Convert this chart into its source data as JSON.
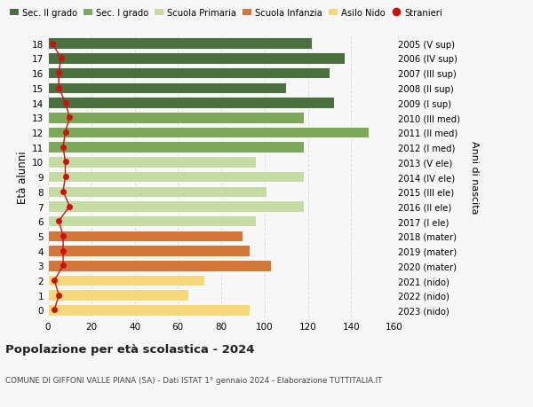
{
  "ages": [
    18,
    17,
    16,
    15,
    14,
    13,
    12,
    11,
    10,
    9,
    8,
    7,
    6,
    5,
    4,
    3,
    2,
    1,
    0
  ],
  "values": [
    122,
    137,
    130,
    110,
    132,
    118,
    148,
    118,
    96,
    118,
    101,
    118,
    96,
    90,
    93,
    103,
    72,
    65,
    93
  ],
  "right_labels": [
    "2005 (V sup)",
    "2006 (IV sup)",
    "2007 (III sup)",
    "2008 (II sup)",
    "2009 (I sup)",
    "2010 (III med)",
    "2011 (II med)",
    "2012 (I med)",
    "2013 (V ele)",
    "2014 (IV ele)",
    "2015 (III ele)",
    "2016 (II ele)",
    "2017 (I ele)",
    "2018 (mater)",
    "2019 (mater)",
    "2020 (mater)",
    "2021 (nido)",
    "2022 (nido)",
    "2023 (nido)"
  ],
  "bar_colors": [
    "#4a7040",
    "#4a7040",
    "#4a7040",
    "#4a7040",
    "#4a7040",
    "#7da85b",
    "#7da85b",
    "#7da85b",
    "#c5dba4",
    "#c5dba4",
    "#c5dba4",
    "#c5dba4",
    "#c5dba4",
    "#d2763a",
    "#d2763a",
    "#d2763a",
    "#f5d87a",
    "#f5d87a",
    "#f5d87a"
  ],
  "stranieri_values": [
    2,
    6,
    5,
    5,
    8,
    10,
    8,
    7,
    8,
    8,
    7,
    10,
    5,
    7,
    7,
    7,
    3,
    5,
    3
  ],
  "legend_labels": [
    "Sec. II grado",
    "Sec. I grado",
    "Scuola Primaria",
    "Scuola Infanzia",
    "Asilo Nido",
    "Stranieri"
  ],
  "legend_colors": [
    "#4a7040",
    "#7da85b",
    "#c5dba4",
    "#d2763a",
    "#f5d87a",
    "#cc1111"
  ],
  "ylabel": "Età alunni",
  "right_ylabel": "Anni di nascita",
  "title": "Popolazione per età scolastica - 2024",
  "subtitle": "COMUNE DI GIFFONI VALLE PIANA (SA) - Dati ISTAT 1° gennaio 2024 - Elaborazione TUTTITALIA.IT",
  "xlim": [
    0,
    160
  ],
  "xticks": [
    0,
    20,
    40,
    60,
    80,
    100,
    120,
    140,
    160
  ],
  "background_color": "#f7f7f7",
  "grid_color": "#dddddd"
}
